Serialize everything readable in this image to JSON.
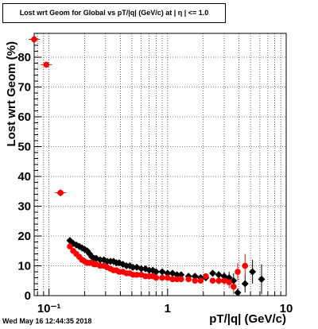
{
  "title": "Lost wrt Geom for Global vs pT/|q| (GeV/c) at | η | <= 1.0",
  "timestamp": "Wed May 16 12:44:35 2018",
  "chart_data": {
    "type": "scatter",
    "title": "Lost wrt Geom for Global vs pT/|q| (GeV/c) at | η | <= 1.0",
    "xlabel": "pT/|q| (GeV/c)",
    "ylabel": "Lost wrt Geom (%)",
    "xscale": "log",
    "xlim": [
      0.075,
      10
    ],
    "ylim": [
      0,
      88
    ],
    "grid": true,
    "x_tick_labels": [
      "10⁻¹",
      "1",
      "10"
    ],
    "y_tick_labels": [
      "0",
      "10",
      "20",
      "30",
      "40",
      "50",
      "60",
      "70",
      "80"
    ],
    "colors": {
      "series_a": "#000000",
      "series_b": "#ff0000"
    },
    "series": [
      {
        "color": "#000000",
        "marker": "diamond",
        "x": [
          0.075,
          0.125,
          0.15,
          0.16,
          0.17,
          0.18,
          0.19,
          0.2,
          0.21,
          0.22,
          0.23,
          0.24,
          0.25,
          0.27,
          0.29,
          0.31,
          0.33,
          0.35,
          0.37,
          0.39,
          0.42,
          0.45,
          0.48,
          0.51,
          0.55,
          0.6,
          0.65,
          0.7,
          0.75,
          0.8,
          0.9,
          1.0,
          1.1,
          1.2,
          1.3,
          1.5,
          1.7,
          1.9,
          2.1,
          2.4,
          2.7,
          3.0,
          3.3,
          3.6,
          3.9,
          4.5,
          5.2,
          6.2
        ],
        "y": [
          86,
          34.5,
          18.5,
          17.5,
          17,
          16.5,
          16,
          15.5,
          15,
          14,
          13,
          12.5,
          12.5,
          12,
          12,
          11.5,
          11.5,
          11.5,
          11,
          11,
          10.5,
          10,
          10,
          9.5,
          9.5,
          9,
          9,
          8.5,
          8.5,
          8,
          8,
          7.5,
          7.5,
          7,
          7,
          6.5,
          6.5,
          6,
          6,
          7.5,
          7,
          6.5,
          6,
          5,
          1,
          4,
          8,
          5.5
        ],
        "y_err": [
          1,
          1,
          0.6,
          0.6,
          0.6,
          0.6,
          0.6,
          0.6,
          0.5,
          0.5,
          0.5,
          0.5,
          0.5,
          0.5,
          0.5,
          0.5,
          0.5,
          0.5,
          0.5,
          0.5,
          0.5,
          0.5,
          0.5,
          0.5,
          0.5,
          0.5,
          0.5,
          0.5,
          0.5,
          0.5,
          0.5,
          0.5,
          0.5,
          0.5,
          0.5,
          0.6,
          0.6,
          0.7,
          0.8,
          1,
          1.2,
          1.5,
          2,
          2.5,
          1.5,
          3,
          4,
          5
        ]
      },
      {
        "color": "#ff0000",
        "marker": "circle",
        "x": [
          0.075,
          0.095,
          0.125,
          0.15,
          0.16,
          0.17,
          0.18,
          0.19,
          0.2,
          0.21,
          0.22,
          0.23,
          0.24,
          0.25,
          0.27,
          0.29,
          0.31,
          0.33,
          0.35,
          0.37,
          0.39,
          0.42,
          0.45,
          0.48,
          0.51,
          0.55,
          0.6,
          0.65,
          0.7,
          0.75,
          0.8,
          0.9,
          1.0,
          1.1,
          1.2,
          1.3,
          1.5,
          1.7,
          1.9,
          2.1,
          2.4,
          2.7,
          3.0,
          3.3,
          3.6,
          3.9,
          4.5
        ],
        "y": [
          86,
          77.5,
          34.5,
          16.5,
          15,
          14,
          13,
          12,
          11.5,
          11,
          11,
          11,
          10.5,
          10.5,
          10,
          10,
          9.5,
          9,
          8.5,
          8.5,
          8,
          8,
          7.5,
          7.5,
          7,
          7,
          7,
          6.5,
          6.5,
          6.5,
          6,
          6,
          6,
          5.5,
          5.5,
          5.5,
          5.5,
          5,
          5,
          6.5,
          5,
          5,
          5,
          4.5,
          3,
          8,
          10
        ],
        "y_err": [
          1,
          0.6,
          1,
          0.6,
          0.6,
          0.5,
          0.5,
          0.5,
          0.5,
          0.5,
          0.5,
          0.5,
          0.5,
          0.5,
          0.5,
          0.5,
          0.5,
          0.5,
          0.5,
          0.5,
          0.5,
          0.5,
          0.5,
          0.5,
          0.5,
          0.5,
          0.5,
          0.5,
          0.5,
          0.5,
          0.5,
          0.5,
          0.5,
          0.5,
          0.5,
          0.5,
          0.5,
          0.5,
          0.6,
          0.8,
          1,
          1.2,
          1.5,
          2,
          2.5,
          3,
          4
        ]
      }
    ]
  }
}
